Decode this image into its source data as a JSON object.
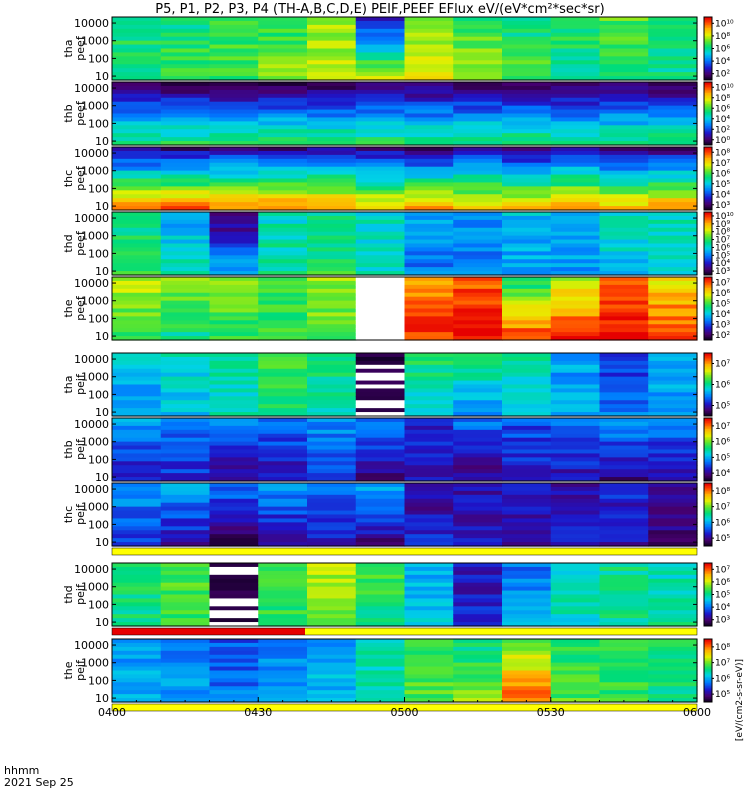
{
  "chart_data": {
    "type": "heatmap",
    "title": "P5, P1, P2, P3, P4 (TH-A,B,C,D,E) PEIF,PEEF EFlux eV/(eV*cm²*sec*sr)",
    "x_axis": {
      "tick_labels": [
        "0400",
        "0430",
        "0500",
        "0530",
        "0600"
      ],
      "label_line1": "hhmm",
      "label_line2": "2021 Sep 25",
      "range": [
        "04:00",
        "06:00"
      ]
    },
    "y_scale": "log",
    "y_tick_labels": [
      "10",
      "100",
      "1000",
      "10000"
    ],
    "colorbar_unit_label": "[eV/(cm2-s-sr-eV)]",
    "panels": [
      {
        "ylabel_top": "tha",
        "ylabel_bottom": "peef",
        "cb_ticks": [
          "10²",
          "10⁴",
          "10⁶",
          "10⁸",
          "10¹⁰"
        ],
        "cb_label": "[eV/(cm²-s-sr-eV)]",
        "dominant_level": 0.5,
        "flag_bar": "none",
        "times": [
          "04:00",
          "04:10",
          "04:20",
          "04:30",
          "04:40",
          "04:50",
          "05:00",
          "05:10",
          "05:20",
          "05:30",
          "05:40",
          "05:50"
        ],
        "levels_high": [
          0.55,
          0.5,
          0.6,
          0.55,
          0.65,
          0.15,
          0.6,
          0.55,
          0.5,
          0.55,
          0.6,
          0.5
        ],
        "levels_low": [
          0.5,
          0.6,
          0.55,
          0.65,
          0.7,
          0.7,
          0.75,
          0.7,
          0.6,
          0.5,
          0.55,
          0.5
        ]
      },
      {
        "ylabel_top": "thb",
        "ylabel_bottom": "peef",
        "cb_ticks": [
          "10⁰",
          "10²",
          "10⁴",
          "10⁶",
          "10⁸",
          "10¹⁰"
        ],
        "cb_label": "[eV/(cm²-s-sr-eV)]",
        "dominant_level": 0.45,
        "flag_bar": "none",
        "times": [
          "04:00",
          "04:10",
          "04:20",
          "04:30",
          "04:40",
          "04:50",
          "05:00",
          "05:10",
          "05:20",
          "05:30",
          "05:40",
          "05:50"
        ],
        "levels_high": [
          0.05,
          0.05,
          0.05,
          0.05,
          0.05,
          0.05,
          0.05,
          0.05,
          0.05,
          0.05,
          0.05,
          0.05
        ],
        "levels_low": [
          0.55,
          0.55,
          0.55,
          0.55,
          0.55,
          0.55,
          0.55,
          0.55,
          0.55,
          0.55,
          0.55,
          0.55
        ]
      },
      {
        "ylabel_top": "thc",
        "ylabel_bottom": "peef",
        "cb_ticks": [
          "10³",
          "10⁴",
          "10⁵",
          "10⁶",
          "10⁷",
          "10⁸"
        ],
        "cb_label": "[eV/(cm²-s-sr-eV)]",
        "dominant_level": 0.6,
        "flag_bar": "none",
        "times": [
          "04:00",
          "04:10",
          "04:20",
          "04:30",
          "04:40",
          "04:50",
          "05:00",
          "05:10",
          "05:20",
          "05:30",
          "05:40",
          "05:50"
        ],
        "levels_high": [
          0.1,
          0.1,
          0.15,
          0.1,
          0.15,
          0.1,
          0.05,
          0.15,
          0.1,
          0.15,
          0.1,
          0.1
        ],
        "levels_low": [
          0.9,
          0.9,
          0.85,
          0.9,
          0.85,
          0.8,
          0.85,
          0.8,
          0.8,
          0.85,
          0.8,
          0.85
        ]
      },
      {
        "ylabel_top": "thd",
        "ylabel_bottom": "peef",
        "cb_ticks": [
          "10³",
          "10⁴",
          "10⁵",
          "10⁶",
          "10⁷",
          "10⁸",
          "10⁹",
          "10¹⁰"
        ],
        "cb_label": "[eV/(cm²-s-sr-eV)]",
        "dominant_level": 0.45,
        "flag_bar": "none",
        "times": [
          "04:00",
          "04:10",
          "04:20",
          "04:30",
          "04:40",
          "04:50",
          "05:00",
          "05:10",
          "05:20",
          "05:30",
          "05:40",
          "05:50"
        ],
        "levels_high": [
          0.5,
          0.35,
          0.05,
          0.45,
          0.5,
          0.45,
          0.35,
          0.35,
          0.4,
          0.4,
          0.45,
          0.45
        ],
        "levels_low": [
          0.55,
          0.5,
          0.4,
          0.5,
          0.55,
          0.45,
          0.3,
          0.3,
          0.35,
          0.35,
          0.4,
          0.45
        ]
      },
      {
        "ylabel_top": "the",
        "ylabel_bottom": "peef",
        "cb_ticks": [
          "10²",
          "10³",
          "10⁴",
          "10⁵",
          "10⁶",
          "10⁷"
        ],
        "cb_label": "[eV/(cm²-s-sr-eV)]",
        "dominant_level": 0.7,
        "flag_bar": "none",
        "times": [
          "04:00",
          "04:10",
          "04:20",
          "04:30",
          "04:40",
          "04:50",
          "05:00",
          "05:10",
          "05:20",
          "05:30",
          "05:40",
          "05:50"
        ],
        "levels_high": [
          0.7,
          0.65,
          0.65,
          0.6,
          0.65,
          -1,
          0.85,
          0.9,
          0.5,
          0.7,
          0.9,
          0.75
        ],
        "levels_low": [
          0.55,
          0.5,
          0.55,
          0.55,
          0.6,
          -1,
          0.95,
          1.0,
          0.95,
          0.95,
          1.0,
          0.95
        ]
      },
      {
        "ylabel_top": "tha",
        "ylabel_bottom": "peif",
        "cb_ticks": [
          "10⁵",
          "10⁶",
          "10⁷"
        ],
        "cb_label": "[eV/(cm²-s-sr-eV)]",
        "dominant_level": 0.45,
        "flag_bar": "yellow",
        "times": [
          "04:00",
          "04:10",
          "04:20",
          "04:30",
          "04:40",
          "04:50",
          "05:00",
          "05:10",
          "05:20",
          "05:30",
          "05:40",
          "05:50"
        ],
        "levels_high": [
          0.4,
          0.45,
          0.5,
          0.6,
          0.55,
          0.0,
          0.55,
          0.6,
          0.5,
          0.35,
          0.2,
          0.35
        ],
        "levels_low": [
          0.35,
          0.4,
          0.45,
          0.5,
          0.45,
          0.0,
          0.4,
          0.3,
          0.4,
          0.35,
          0.3,
          0.35
        ]
      },
      {
        "ylabel_top": "thb",
        "ylabel_bottom": "peif",
        "cb_ticks": [
          "10⁴",
          "10⁵",
          "10⁶",
          "10⁷"
        ],
        "cb_label": "[eV/(cm²-s-sr-eV)]",
        "dominant_level": 0.25,
        "flag_bar": "yellow",
        "times": [
          "04:00",
          "04:10",
          "04:20",
          "04:30",
          "04:40",
          "04:50",
          "05:00",
          "05:10",
          "05:20",
          "05:30",
          "05:40",
          "05:50"
        ],
        "levels_high": [
          0.35,
          0.3,
          0.35,
          0.3,
          0.35,
          0.3,
          0.2,
          0.3,
          0.25,
          0.3,
          0.35,
          0.3
        ],
        "levels_low": [
          0.15,
          0.2,
          0.1,
          0.15,
          0.2,
          0.1,
          0.15,
          0.1,
          0.2,
          0.15,
          0.1,
          0.15
        ]
      },
      {
        "ylabel_top": "thc",
        "ylabel_bottom": "peif",
        "cb_ticks": [
          "10⁵",
          "10⁶",
          "10⁷",
          "10⁸"
        ],
        "cb_label": "[eV/(cm²-s-sr-eV)]",
        "dominant_level": 0.3,
        "flag_bar": "yellow",
        "times": [
          "04:00",
          "04:10",
          "04:20",
          "04:30",
          "04:40",
          "04:50",
          "05:00",
          "05:10",
          "05:20",
          "05:30",
          "05:40",
          "05:50"
        ],
        "levels_high": [
          0.35,
          0.35,
          0.3,
          0.35,
          0.3,
          0.35,
          0.1,
          0.15,
          0.2,
          0.15,
          0.2,
          0.1
        ],
        "levels_low": [
          0.2,
          0.15,
          0.05,
          0.1,
          0.15,
          0.1,
          0.2,
          0.15,
          0.1,
          0.2,
          0.15,
          0.1
        ]
      },
      {
        "ylabel_top": "thd",
        "ylabel_bottom": "peif",
        "cb_ticks": [
          "10³",
          "10⁴",
          "10⁵",
          "10⁶",
          "10⁷"
        ],
        "cb_label": "[eV/(cm²-s-sr-eV)]",
        "dominant_level": 0.45,
        "flag_bar": "red-yellow",
        "times": [
          "04:00",
          "04:10",
          "04:20",
          "04:30",
          "04:40",
          "04:50",
          "05:00",
          "05:10",
          "05:20",
          "05:30",
          "05:40",
          "05:50"
        ],
        "levels_high": [
          0.55,
          0.6,
          0.0,
          0.6,
          0.7,
          0.6,
          0.35,
          0.15,
          0.3,
          0.45,
          0.5,
          0.45
        ],
        "levels_low": [
          0.5,
          0.55,
          0.0,
          0.55,
          0.6,
          0.5,
          0.4,
          0.2,
          0.35,
          0.45,
          0.5,
          0.5
        ]
      },
      {
        "ylabel_top": "the",
        "ylabel_bottom": "peif",
        "cb_ticks": [
          "10⁵",
          "10⁶",
          "10⁷",
          "10⁸"
        ],
        "cb_label": "[eV/(cm²-s-sr-eV)]",
        "dominant_level": 0.45,
        "flag_bar": "yellow",
        "times": [
          "04:00",
          "04:10",
          "04:20",
          "04:30",
          "04:40",
          "04:50",
          "05:00",
          "05:10",
          "05:20",
          "05:30",
          "05:40",
          "05:50"
        ],
        "levels_high": [
          0.35,
          0.3,
          0.25,
          0.3,
          0.35,
          0.45,
          0.55,
          0.5,
          0.6,
          0.55,
          0.6,
          0.55
        ],
        "levels_low": [
          0.35,
          0.35,
          0.3,
          0.35,
          0.4,
          0.5,
          0.6,
          0.65,
          0.9,
          0.6,
          0.55,
          0.5
        ]
      }
    ]
  }
}
